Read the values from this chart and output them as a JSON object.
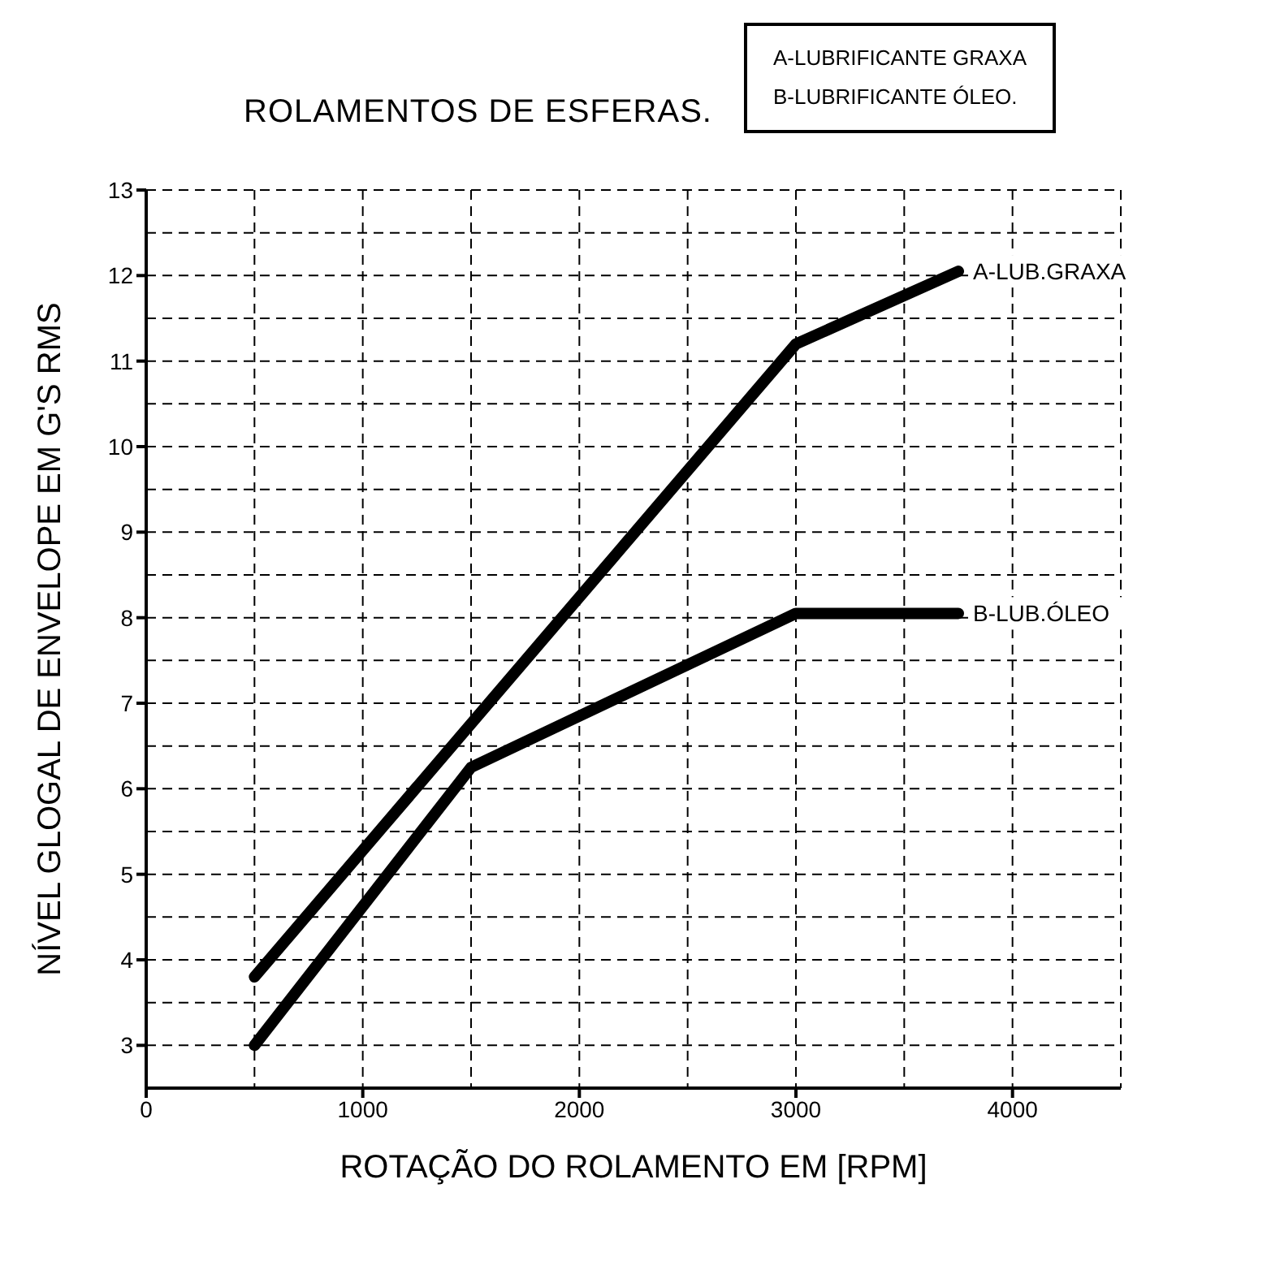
{
  "chart_data": {
    "type": "line",
    "title": "ROLAMENTOS DE ESFERAS.",
    "xlabel": "ROTAÇÃO DO ROLAMENTO EM [RPM]",
    "ylabel": "NÍVEL GLOGAL DE ENVELOPE EM G'S RMS",
    "annotations": [
      "A-LUBRIFICANTE GRAXA",
      "B-LUBRIFICANTE ÓLEO."
    ],
    "series": [
      {
        "name": "A-LUB.GRAXA",
        "color": "#000000",
        "x": [
          500,
          3000,
          3750
        ],
        "values": [
          3.8,
          11.2,
          12.05
        ]
      },
      {
        "name": "B-LUB.ÓLEO",
        "color": "#000000",
        "x": [
          500,
          1500,
          3000,
          3750
        ],
        "values": [
          3.0,
          6.25,
          8.05,
          8.05
        ]
      }
    ],
    "xlim": [
      0,
      4500
    ],
    "xticks": [
      0,
      1000,
      2000,
      3000,
      4000
    ],
    "ylim": [
      2.5,
      13
    ],
    "yticks": [
      3,
      4,
      5,
      6,
      7,
      8,
      9,
      10,
      11,
      12,
      13
    ],
    "grid": true,
    "line_style": "solid",
    "marker": "none"
  }
}
